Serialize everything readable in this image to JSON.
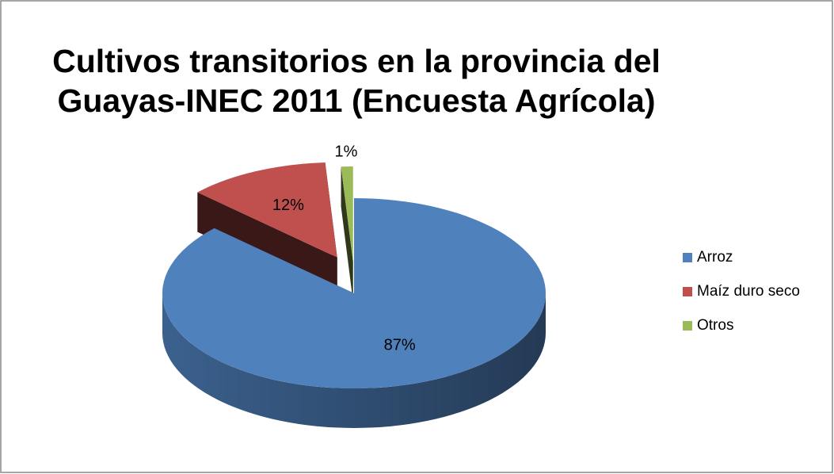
{
  "chart_data": {
    "type": "pie",
    "title": [
      "Cultivos transitorios en la provincia del",
      "Guayas-INEC 2011 (Encuesta Agrícola)"
    ],
    "categories": [
      "Arroz",
      "Maíz duro seco",
      "Otros"
    ],
    "values": [
      87,
      12,
      1
    ],
    "value_labels": [
      "87%",
      "12%",
      "1%"
    ],
    "colors": [
      "#4f81bd",
      "#c0504d",
      "#9bbb59"
    ],
    "legend": "right"
  }
}
